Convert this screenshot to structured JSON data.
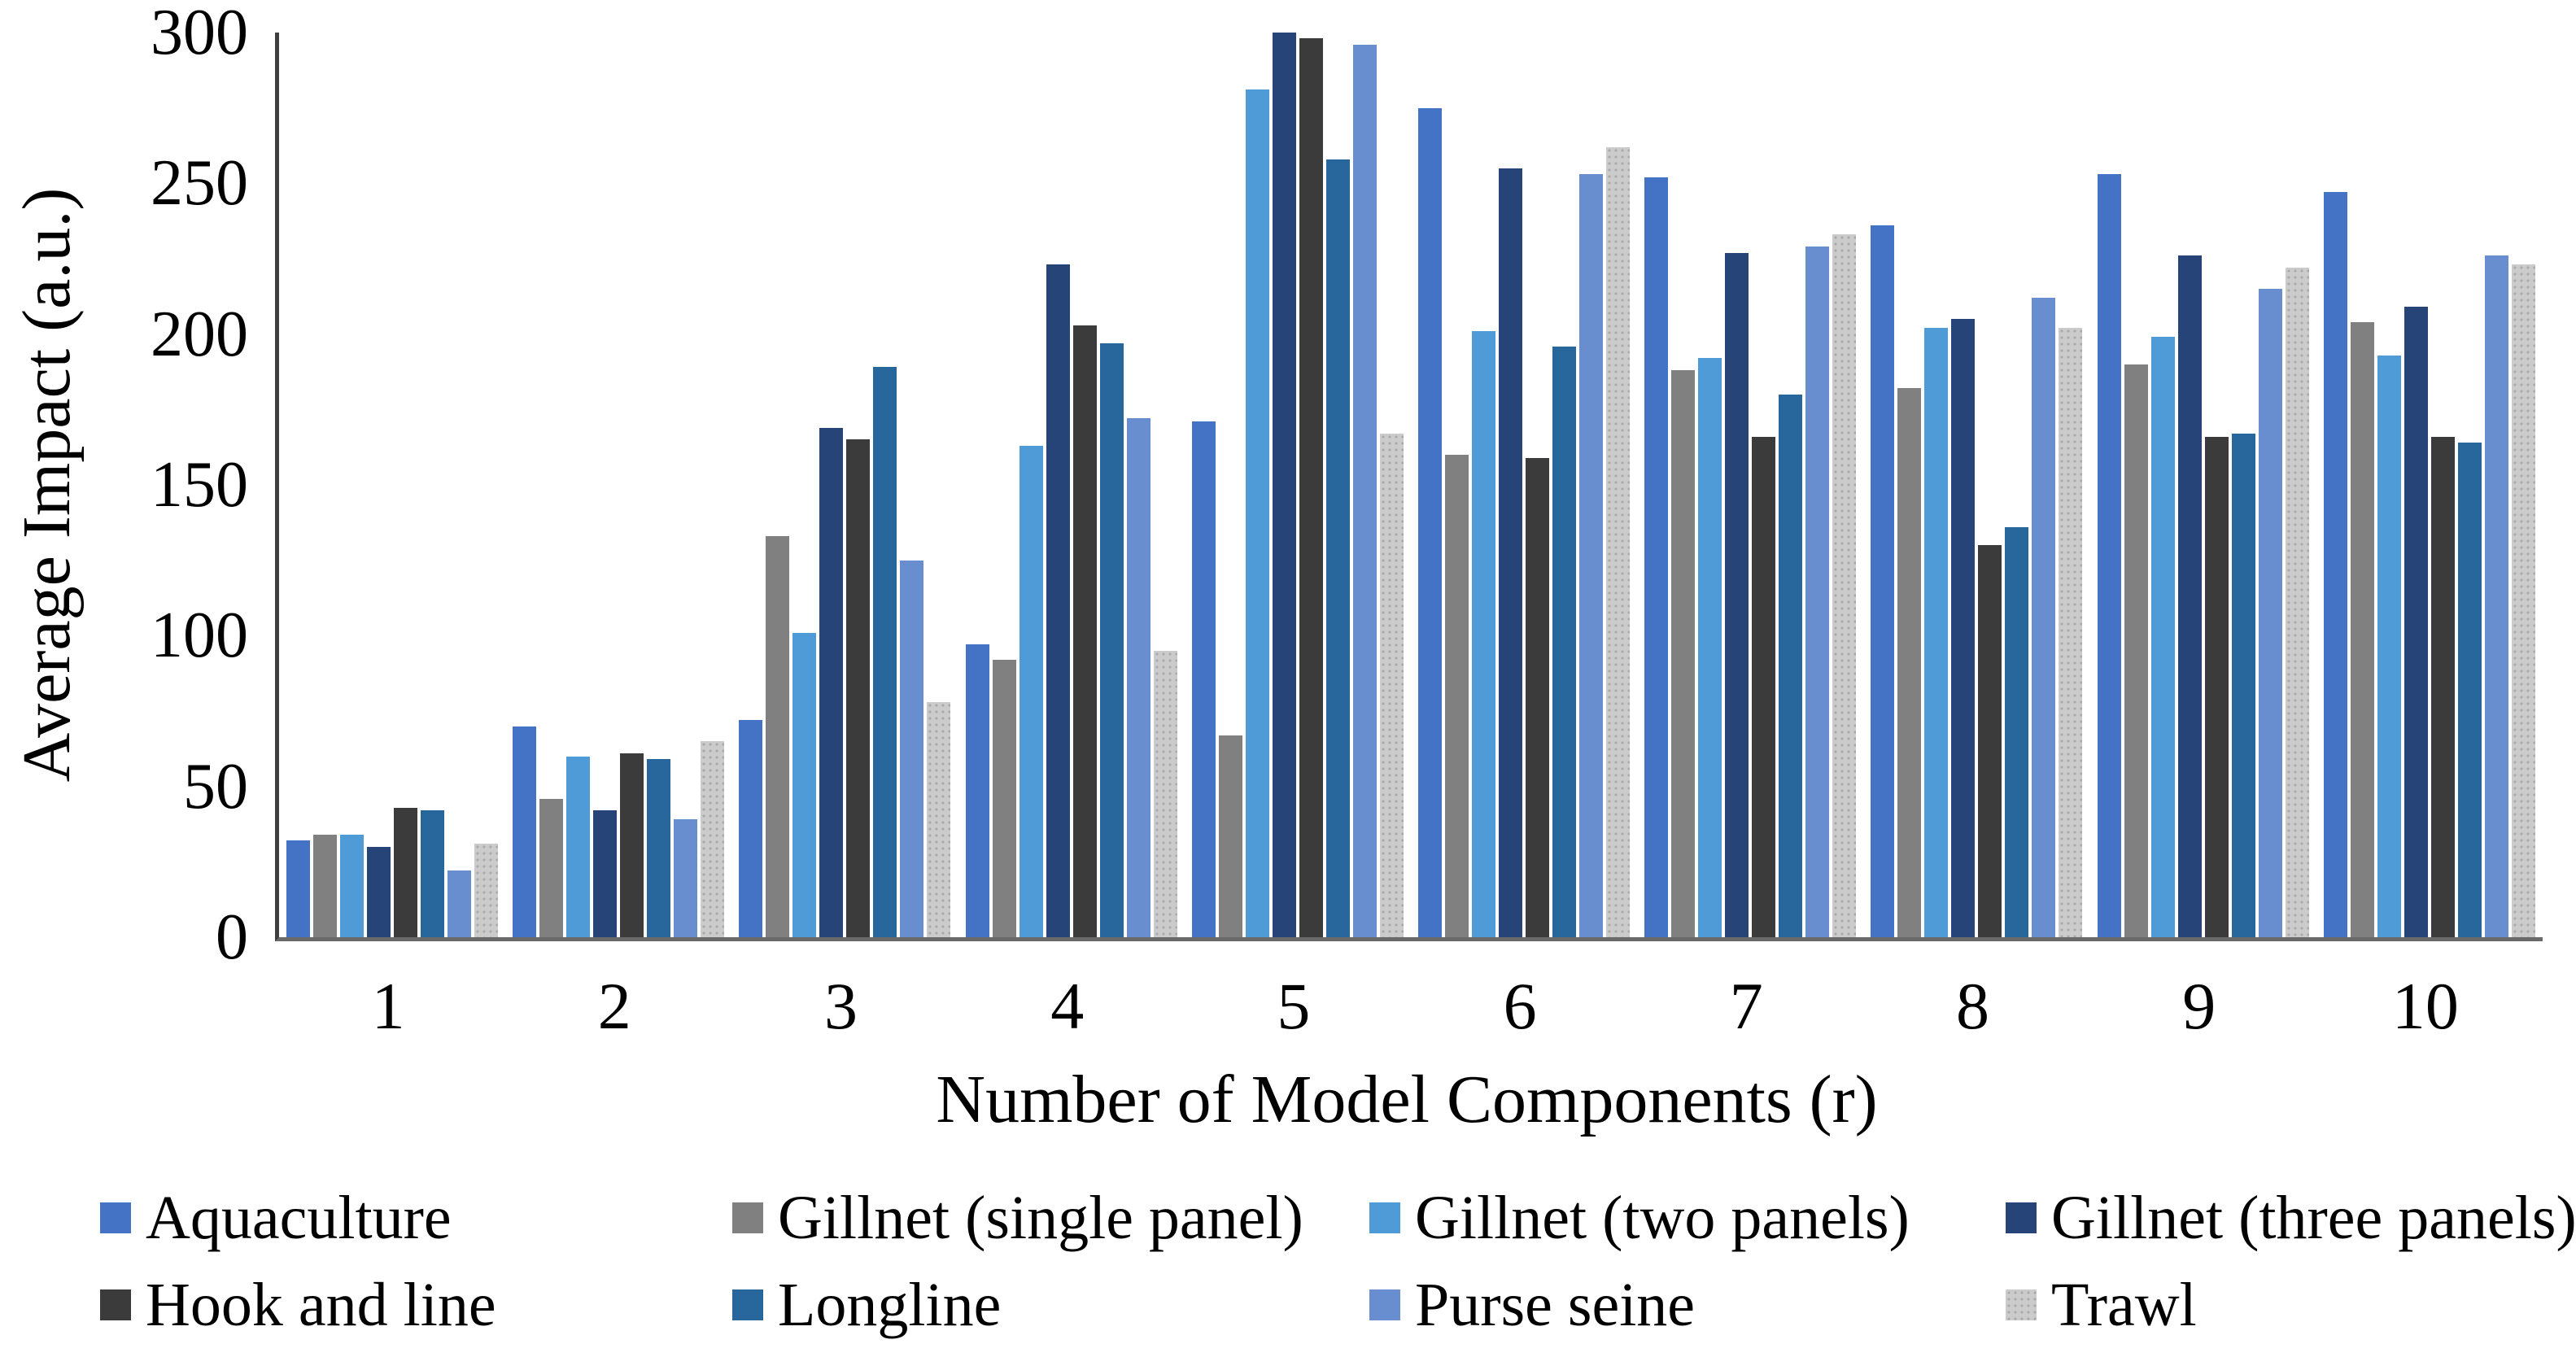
{
  "chart_data": {
    "type": "bar",
    "title": "",
    "xlabel": "Number of Model Components (r)",
    "ylabel": "Average Impact (a.u.)",
    "ylim": [
      0,
      300
    ],
    "yticks": [
      0,
      50,
      100,
      150,
      200,
      250,
      300
    ],
    "grid": false,
    "legend_position": "bottom",
    "axis_colors": {
      "y_axis_line": "#3f3f3f",
      "x_axis_line": "#6a6a6a"
    },
    "categories": [
      "1",
      "2",
      "3",
      "4",
      "5",
      "6",
      "7",
      "8",
      "9",
      "10"
    ],
    "series": [
      {
        "name": "Aquaculture",
        "color": "#4472C4",
        "pattern": "solid",
        "values": [
          32,
          70,
          72,
          97,
          171,
          275,
          252,
          236,
          253,
          247
        ]
      },
      {
        "name": "Gillnet (single panel)",
        "color": "#808080",
        "pattern": "solid",
        "values": [
          34,
          46,
          133,
          92,
          67,
          160,
          188,
          182,
          190,
          204
        ]
      },
      {
        "name": "Gillnet (two panels)",
        "color": "#4F9BD8",
        "pattern": "solid",
        "values": [
          34,
          60,
          101,
          163,
          281,
          201,
          192,
          202,
          199,
          193
        ]
      },
      {
        "name": "Gillnet (three panels)",
        "color": "#264478",
        "pattern": "solid",
        "values": [
          30,
          42,
          169,
          223,
          300,
          255,
          227,
          205,
          226,
          209
        ]
      },
      {
        "name": "Hook and line",
        "color": "#3B3B3B",
        "pattern": "solid",
        "values": [
          43,
          61,
          165,
          203,
          298,
          159,
          166,
          130,
          166,
          166
        ]
      },
      {
        "name": "Longline",
        "color": "#27679C",
        "pattern": "solid",
        "values": [
          42,
          59,
          189,
          197,
          258,
          196,
          180,
          136,
          167,
          164
        ]
      },
      {
        "name": "Purse seine",
        "color": "#698ED0",
        "pattern": "solid",
        "values": [
          22,
          39,
          125,
          172,
          296,
          253,
          229,
          212,
          215,
          226
        ]
      },
      {
        "name": "Trawl",
        "color": "#CBCBCB",
        "pattern": "dots",
        "values": [
          31,
          65,
          78,
          95,
          167,
          262,
          233,
          202,
          222,
          223
        ]
      }
    ],
    "legend_columns_x": [
      123,
      900,
      1683,
      2465
    ],
    "legend_rows_y": [
      1451,
      1558
    ]
  }
}
